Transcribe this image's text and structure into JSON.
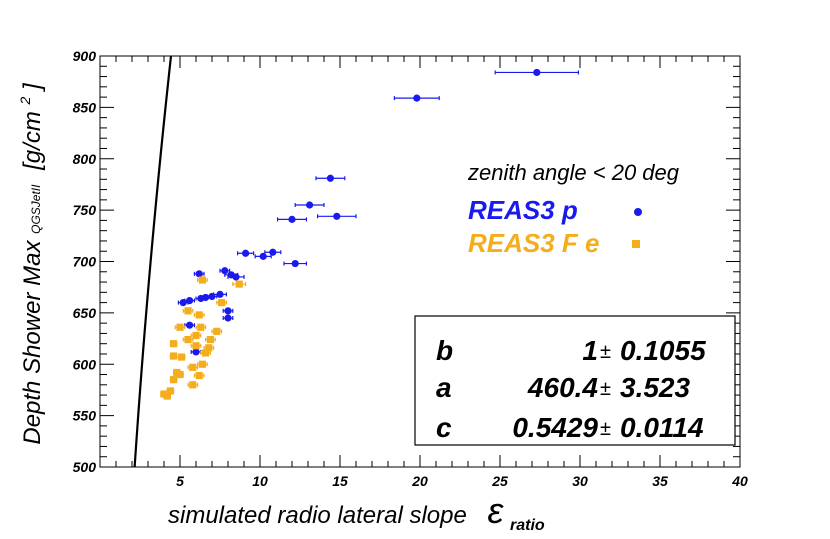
{
  "chart_data": {
    "type": "scatter",
    "xlabel_main": "simulated radio lateral slope",
    "xlabel_symbol": "ε",
    "xlabel_sub": "ratio",
    "ylabel_main": "Depth Shower Max",
    "ylabel_sub": "QGSJetII",
    "ylabel_unit_pre": "[g/cm",
    "ylabel_unit_sup": "2",
    "ylabel_unit_post": "]",
    "xlim": [
      0,
      40
    ],
    "ylim": [
      500,
      900
    ],
    "xticks": [
      5,
      10,
      15,
      20,
      25,
      30,
      35,
      40
    ],
    "yticks": [
      500,
      550,
      600,
      650,
      700,
      750,
      800,
      850,
      900
    ],
    "legend": {
      "title": "zenith angle < 20 deg",
      "entries": [
        {
          "label": "REAS3  p",
          "color": "#1a1aee",
          "marker": "circle"
        },
        {
          "label": "REAS3 F e",
          "color": "#f4ad1c",
          "marker": "square"
        }
      ]
    },
    "fit": {
      "params": [
        {
          "name": "b",
          "value": "1",
          "error": "0.1055"
        },
        {
          "name": "a",
          "value": "460.4",
          "error": "3.523"
        },
        {
          "name": "c",
          "value": "0.5429",
          "error": "0.0114"
        }
      ],
      "pm_symbol": "±",
      "formula_hint": "a * (x - b)^c"
    },
    "series": [
      {
        "name": "REAS3 p",
        "color": "#1a1aee",
        "marker": "circle",
        "points": [
          {
            "x": 27.3,
            "y": 884,
            "xerr": 2.6
          },
          {
            "x": 19.8,
            "y": 859,
            "xerr": 1.4
          },
          {
            "x": 14.4,
            "y": 781,
            "xerr": 0.9
          },
          {
            "x": 13.1,
            "y": 755,
            "xerr": 0.9
          },
          {
            "x": 14.8,
            "y": 744,
            "xerr": 1.2
          },
          {
            "x": 12.0,
            "y": 741,
            "xerr": 0.9
          },
          {
            "x": 12.2,
            "y": 698,
            "xerr": 0.7
          },
          {
            "x": 9.1,
            "y": 708,
            "xerr": 0.5
          },
          {
            "x": 10.2,
            "y": 705,
            "xerr": 0.5
          },
          {
            "x": 10.8,
            "y": 709,
            "xerr": 0.5
          },
          {
            "x": 6.2,
            "y": 688,
            "xerr": 0.3
          },
          {
            "x": 7.8,
            "y": 691,
            "xerr": 0.3
          },
          {
            "x": 8.2,
            "y": 687,
            "xerr": 0.4
          },
          {
            "x": 8.5,
            "y": 685,
            "xerr": 0.5
          },
          {
            "x": 5.6,
            "y": 662,
            "xerr": 0.3
          },
          {
            "x": 5.2,
            "y": 660,
            "xerr": 0.3
          },
          {
            "x": 6.3,
            "y": 664,
            "xerr": 0.3
          },
          {
            "x": 6.6,
            "y": 665,
            "xerr": 0.3
          },
          {
            "x": 7.0,
            "y": 666,
            "xerr": 0.3
          },
          {
            "x": 7.5,
            "y": 668,
            "xerr": 0.4
          },
          {
            "x": 8.0,
            "y": 652,
            "xerr": 0.3
          },
          {
            "x": 8.0,
            "y": 645,
            "xerr": 0.3
          },
          {
            "x": 5.6,
            "y": 638,
            "xerr": 0.3
          },
          {
            "x": 6.0,
            "y": 612,
            "xerr": 0.3
          }
        ]
      },
      {
        "name": "REAS3 F e",
        "color": "#f4ad1c",
        "marker": "square",
        "points": [
          {
            "x": 6.4,
            "y": 682,
            "xerr": 0.3
          },
          {
            "x": 8.7,
            "y": 678,
            "xerr": 0.4
          },
          {
            "x": 7.6,
            "y": 660,
            "xerr": 0.3
          },
          {
            "x": 5.5,
            "y": 652,
            "xerr": 0.3
          },
          {
            "x": 6.2,
            "y": 648,
            "xerr": 0.3
          },
          {
            "x": 5.0,
            "y": 636,
            "xerr": 0.3
          },
          {
            "x": 6.3,
            "y": 636,
            "xerr": 0.3
          },
          {
            "x": 7.3,
            "y": 632,
            "xerr": 0.3
          },
          {
            "x": 6.0,
            "y": 628,
            "xerr": 0.3
          },
          {
            "x": 5.5,
            "y": 624,
            "xerr": 0.3
          },
          {
            "x": 6.9,
            "y": 624,
            "xerr": 0.3
          },
          {
            "x": 4.6,
            "y": 620,
            "xerr": 0.2
          },
          {
            "x": 6.0,
            "y": 618,
            "xerr": 0.3
          },
          {
            "x": 6.8,
            "y": 616,
            "xerr": 0.3
          },
          {
            "x": 6.6,
            "y": 611,
            "xerr": 0.3
          },
          {
            "x": 4.6,
            "y": 608,
            "xerr": 0.2
          },
          {
            "x": 5.1,
            "y": 607,
            "xerr": 0.2
          },
          {
            "x": 6.4,
            "y": 600,
            "xerr": 0.3
          },
          {
            "x": 5.8,
            "y": 597,
            "xerr": 0.3
          },
          {
            "x": 4.8,
            "y": 592,
            "xerr": 0.2
          },
          {
            "x": 5.0,
            "y": 590,
            "xerr": 0.2
          },
          {
            "x": 6.2,
            "y": 589,
            "xerr": 0.3
          },
          {
            "x": 4.6,
            "y": 585,
            "xerr": 0.2
          },
          {
            "x": 5.8,
            "y": 580,
            "xerr": 0.3
          },
          {
            "x": 4.4,
            "y": 574,
            "xerr": 0.2
          },
          {
            "x": 4.0,
            "y": 571,
            "xerr": 0.2
          },
          {
            "x": 4.2,
            "y": 569,
            "xerr": 0.2
          }
        ]
      }
    ]
  }
}
